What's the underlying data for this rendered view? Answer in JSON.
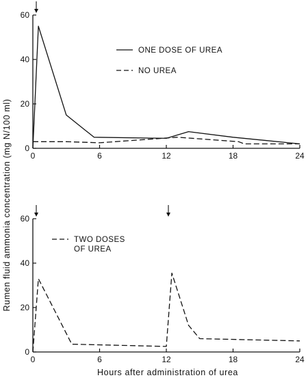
{
  "y_label": "Rumen fluid ammonia concentration (mg N/100 ml)",
  "x_label": "Hours after administration of urea",
  "chart_data": [
    {
      "type": "line",
      "xlim": [
        0,
        24
      ],
      "ylim": [
        0,
        60
      ],
      "x_ticks": [
        "0",
        "6",
        "12",
        "18",
        "24"
      ],
      "y_ticks": [
        "0",
        "20",
        "40",
        "60"
      ],
      "dosing_times": [
        0
      ],
      "legend_placement": "top-right",
      "series": [
        {
          "name": "ONE DOSE OF UREA",
          "style": "solid",
          "x": [
            0,
            0.5,
            3,
            5.5,
            12,
            14,
            18,
            24
          ],
          "y": [
            0,
            55,
            15,
            5,
            4.5,
            7.5,
            5,
            2
          ]
        },
        {
          "name": "NO UREA",
          "style": "dashed",
          "x": [
            0,
            3,
            6,
            13,
            18.5,
            19,
            24
          ],
          "y": [
            3,
            3,
            2.5,
            5,
            3,
            2,
            2
          ]
        }
      ]
    },
    {
      "type": "line",
      "xlim": [
        0,
        24
      ],
      "ylim": [
        0,
        60
      ],
      "x_ticks": [
        "0",
        "6",
        "12",
        "18",
        "24"
      ],
      "y_ticks": [
        "0",
        "20",
        "40",
        "60"
      ],
      "dosing_times": [
        0,
        12
      ],
      "legend_placement": "top-left",
      "series": [
        {
          "name": "TWO DOSES OF UREA",
          "legend_lines": [
            "TWO DOSES",
            "OF UREA"
          ],
          "style": "dashed",
          "x": [
            0,
            0.5,
            3.5,
            12,
            12.5,
            14,
            15,
            24
          ],
          "y": [
            0,
            33,
            3.5,
            2.5,
            35.5,
            12,
            6,
            5
          ]
        }
      ]
    }
  ]
}
